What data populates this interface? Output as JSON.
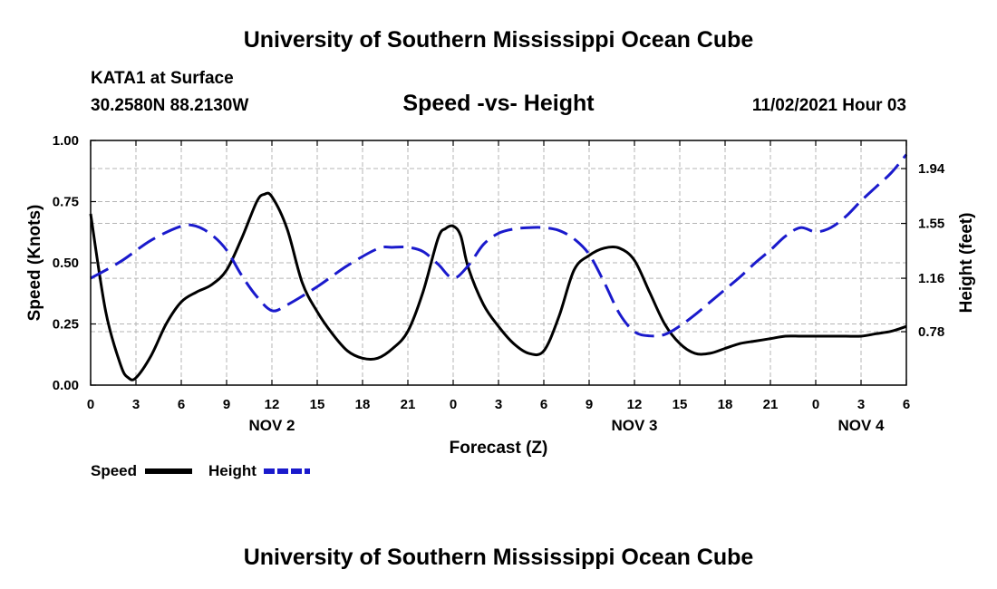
{
  "header": {
    "title": "University of Southern Mississippi Ocean Cube",
    "station": "KATA1 at Surface",
    "coords": "30.2580N  88.2130W",
    "chart_title": "Speed -vs- Height",
    "forecast_time": "11/02/2021 Hour 03"
  },
  "footer": {
    "title": "University of Southern Mississippi Ocean Cube"
  },
  "colors": {
    "speed": "#000000",
    "height": "#1a1acc",
    "grid": "#b4b4b4"
  },
  "chart_data": {
    "type": "line",
    "title": "Speed -vs- Height",
    "xlabel": "Forecast (Z)",
    "ylabel": "Speed (Knots)",
    "y2label": "Height (feet)",
    "x_unit": "hours since NOV 2 00Z",
    "xlim": [
      0,
      54
    ],
    "ylim": [
      0,
      1.0
    ],
    "y2lim": [
      0.4,
      2.14
    ],
    "x_ticks": [
      0,
      3,
      6,
      9,
      12,
      15,
      18,
      21,
      24,
      27,
      30,
      33,
      36,
      39,
      42,
      45,
      48,
      51,
      54
    ],
    "x_tick_labels": [
      "0",
      "3",
      "6",
      "9",
      "12",
      "15",
      "18",
      "21",
      "0",
      "3",
      "6",
      "9",
      "12",
      "15",
      "18",
      "21",
      "0",
      "3",
      "6"
    ],
    "y_ticks": [
      0,
      0.25,
      0.5,
      0.75,
      1.0
    ],
    "y_tick_labels": [
      "0.00",
      "0.25",
      "0.50",
      "0.75",
      "1.00"
    ],
    "y2_ticks": [
      0.78,
      1.16,
      1.55,
      1.94
    ],
    "y2_tick_labels": [
      "0.78",
      "1.16",
      "1.55",
      "1.94"
    ],
    "day_labels": [
      {
        "label": "NOV 2",
        "x": 12
      },
      {
        "label": "NOV 3",
        "x": 36
      },
      {
        "label": "NOV 4",
        "x": 51
      }
    ],
    "grid": true,
    "legend_position": "bottom-left",
    "series": [
      {
        "name": "Speed",
        "axis": "left",
        "style": "solid",
        "color": "#000000",
        "x": [
          0,
          1,
          2,
          2.5,
          3,
          4,
          5,
          6,
          7,
          8,
          9,
          10,
          11,
          11.5,
          12,
          13,
          14,
          15,
          16,
          17,
          18,
          19,
          20,
          21,
          22,
          23,
          23.5,
          24,
          24.5,
          25,
          26,
          27,
          28,
          29,
          30,
          31,
          32,
          33,
          34,
          35,
          36,
          37,
          38,
          39,
          40,
          41,
          42,
          43,
          44,
          45,
          46,
          47,
          48,
          49,
          50,
          51,
          52,
          53,
          54
        ],
        "y": [
          0.7,
          0.3,
          0.08,
          0.03,
          0.03,
          0.12,
          0.25,
          0.34,
          0.38,
          0.41,
          0.47,
          0.6,
          0.75,
          0.78,
          0.77,
          0.64,
          0.42,
          0.3,
          0.21,
          0.14,
          0.11,
          0.11,
          0.15,
          0.22,
          0.38,
          0.6,
          0.64,
          0.65,
          0.61,
          0.48,
          0.33,
          0.24,
          0.17,
          0.13,
          0.14,
          0.28,
          0.47,
          0.53,
          0.56,
          0.56,
          0.51,
          0.38,
          0.25,
          0.17,
          0.13,
          0.13,
          0.15,
          0.17,
          0.18,
          0.19,
          0.2,
          0.2,
          0.2,
          0.2,
          0.2,
          0.2,
          0.21,
          0.22,
          0.24
        ]
      },
      {
        "name": "Height",
        "axis": "right",
        "style": "dashed",
        "color": "#1a1acc",
        "x": [
          0,
          2,
          4,
          6,
          7,
          8,
          9,
          10,
          11,
          12,
          13,
          15,
          17,
          19,
          20,
          21,
          22,
          23,
          24,
          25,
          26,
          27,
          28,
          29,
          30,
          31,
          32,
          33,
          34,
          35,
          36,
          37,
          38,
          39,
          40,
          41,
          42,
          43,
          44,
          45,
          46,
          47,
          48,
          49,
          50,
          51,
          52,
          53,
          54
        ],
        "y": [
          1.16,
          1.28,
          1.43,
          1.53,
          1.53,
          1.47,
          1.36,
          1.18,
          1.03,
          0.93,
          0.97,
          1.1,
          1.25,
          1.37,
          1.38,
          1.38,
          1.35,
          1.26,
          1.16,
          1.25,
          1.4,
          1.48,
          1.51,
          1.52,
          1.52,
          1.5,
          1.44,
          1.33,
          1.13,
          0.91,
          0.78,
          0.75,
          0.76,
          0.82,
          0.9,
          0.99,
          1.08,
          1.17,
          1.27,
          1.36,
          1.46,
          1.52,
          1.49,
          1.52,
          1.6,
          1.71,
          1.81,
          1.91,
          2.04
        ]
      }
    ]
  }
}
